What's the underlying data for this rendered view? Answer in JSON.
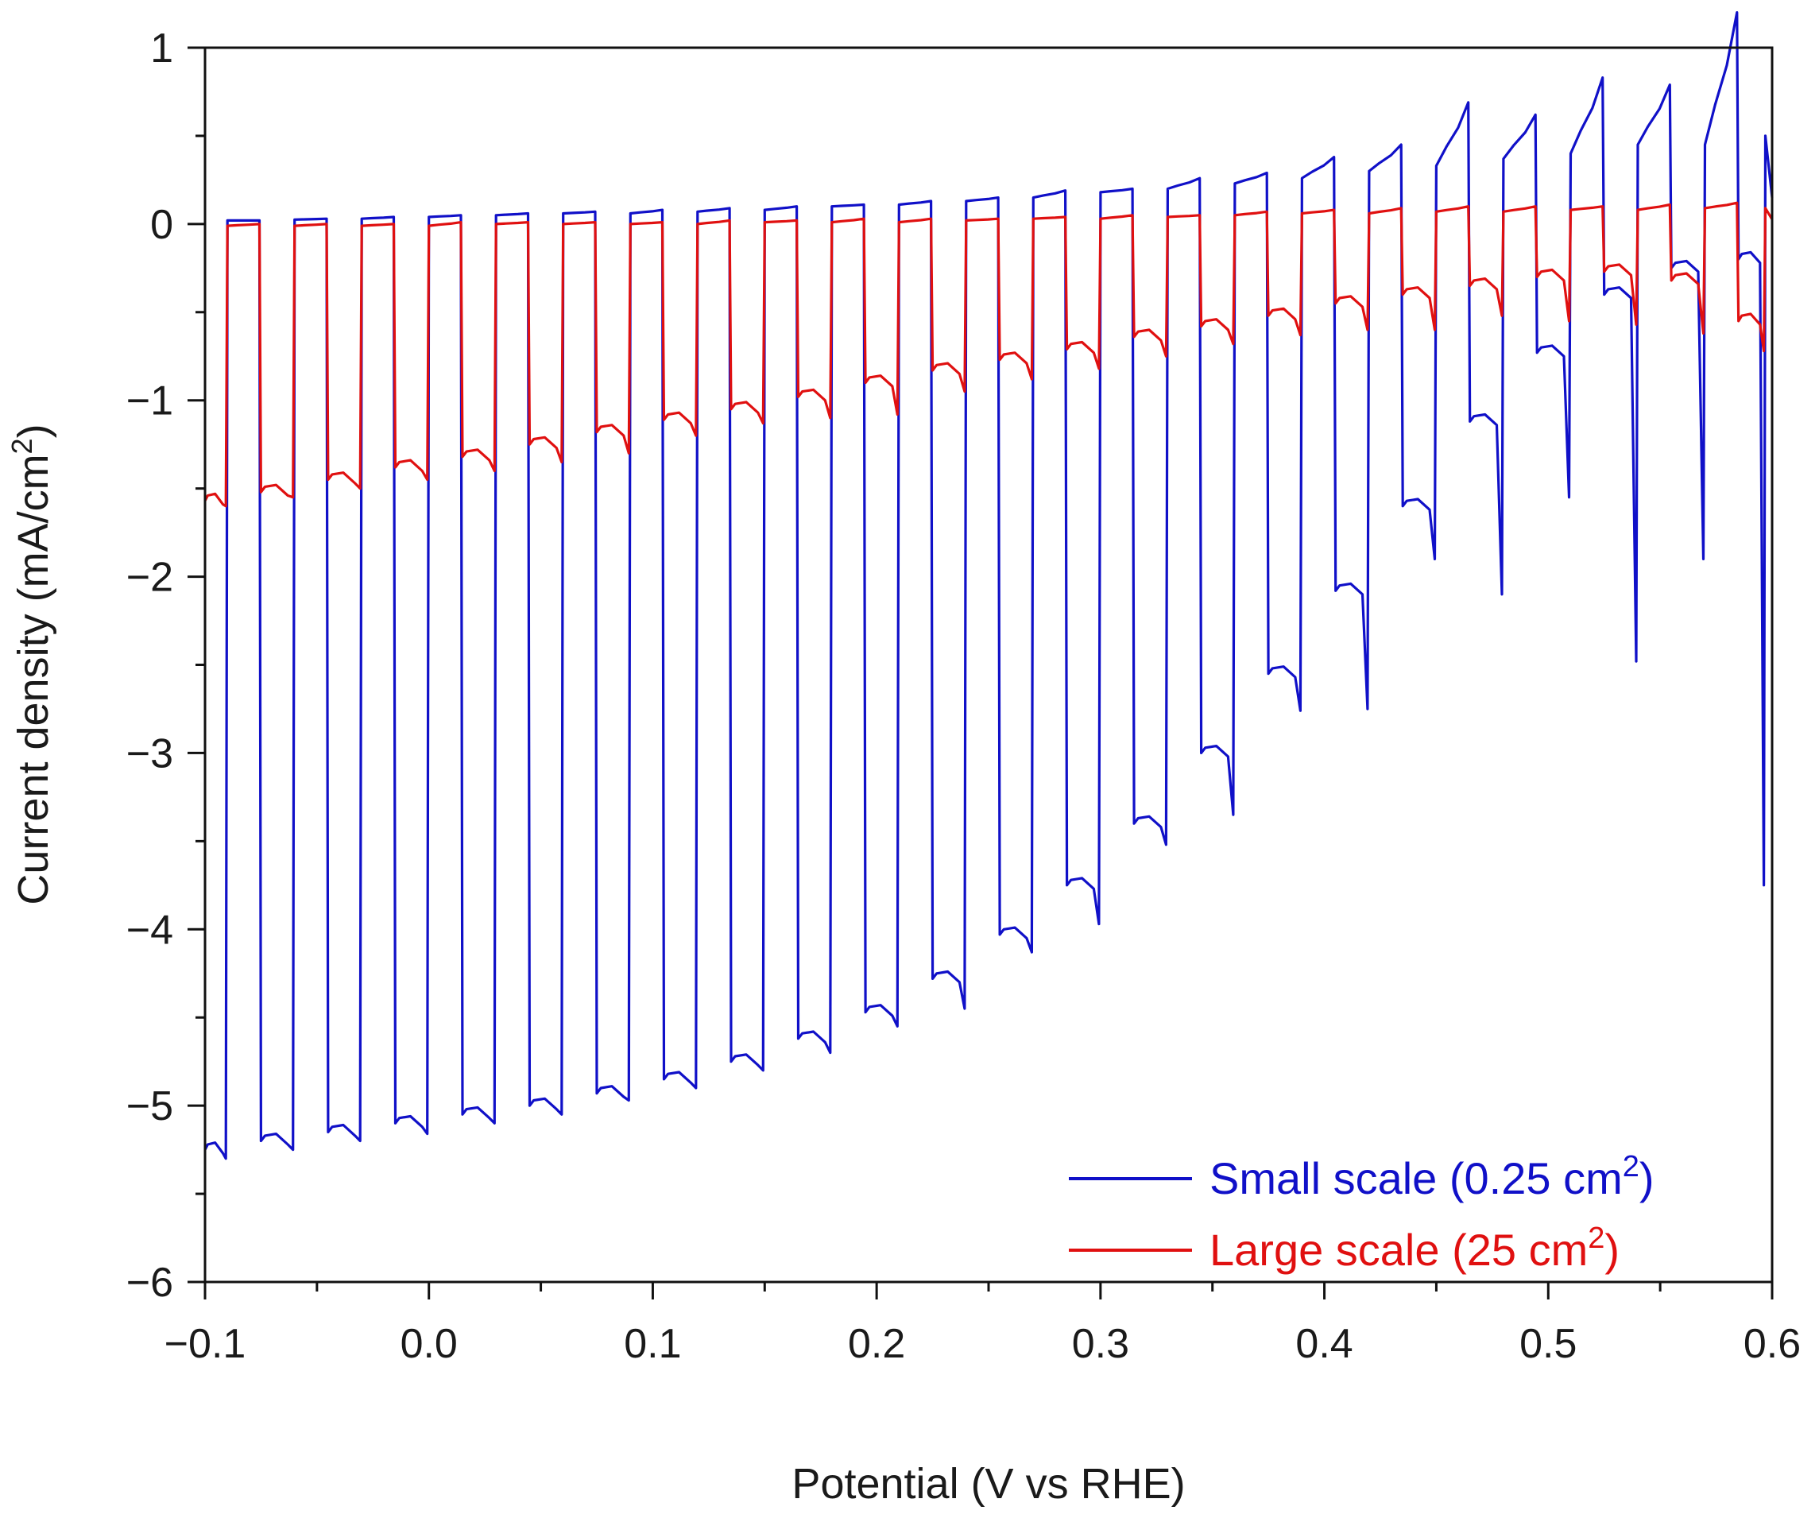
{
  "chart_data": {
    "type": "line",
    "title": "",
    "xlabel": "Potential (V vs RHE)",
    "ylabel": "Current density (mA/cm",
    "ylabel_sup": "2",
    "ylabel_close": ")",
    "xlim": [
      -0.1,
      0.6
    ],
    "ylim": [
      -6,
      1
    ],
    "x_ticks": [
      -0.1,
      0.0,
      0.1,
      0.2,
      0.3,
      0.4,
      0.5,
      0.6
    ],
    "x_tick_labels": [
      "−0.1",
      "0.0",
      "0.1",
      "0.2",
      "0.3",
      "0.4",
      "0.5",
      "0.6"
    ],
    "y_ticks": [
      1,
      0,
      -1,
      -2,
      -3,
      -4,
      -5,
      -6
    ],
    "y_tick_labels": [
      "1",
      "0",
      "−1",
      "−2",
      "−3",
      "−4",
      "−5",
      "−6"
    ],
    "chopped_light": true,
    "chop_period_V": 0.03,
    "light_on_starts_V": [
      -0.1,
      -0.075,
      -0.045,
      -0.015,
      0.015,
      0.045,
      0.075,
      0.105,
      0.135,
      0.165,
      0.195,
      0.225,
      0.255,
      0.285,
      0.315,
      0.345,
      0.375,
      0.405,
      0.435,
      0.465,
      0.495,
      0.525,
      0.555,
      0.585
    ],
    "light_on_ends_V": [
      -0.09,
      -0.06,
      -0.03,
      0.0,
      0.03,
      0.06,
      0.09,
      0.12,
      0.15,
      0.18,
      0.21,
      0.24,
      0.27,
      0.3,
      0.33,
      0.36,
      0.39,
      0.42,
      0.45,
      0.48,
      0.51,
      0.54,
      0.57,
      0.597
    ],
    "series": [
      {
        "name": "Small scale (0.25 cm",
        "name_sup": "2",
        "name_close": ")",
        "color": "#1010c8",
        "dark_current_start": [
          0.02,
          0.025,
          0.03,
          0.04,
          0.05,
          0.06,
          0.06,
          0.07,
          0.08,
          0.1,
          0.11,
          0.13,
          0.15,
          0.18,
          0.2,
          0.23,
          0.26,
          0.3,
          0.33,
          0.37,
          0.4,
          0.45,
          0.45,
          0.5
        ],
        "dark_current_peak": [
          0.02,
          0.03,
          0.04,
          0.05,
          0.06,
          0.07,
          0.08,
          0.09,
          0.1,
          0.11,
          0.13,
          0.15,
          0.19,
          0.2,
          0.26,
          0.29,
          0.38,
          0.45,
          0.69,
          0.62,
          0.83,
          0.79,
          1.2,
          0.8
        ],
        "light_current_plateau": [
          -5.25,
          -5.2,
          -5.15,
          -5.1,
          -5.05,
          -5.0,
          -4.93,
          -4.85,
          -4.75,
          -4.62,
          -4.47,
          -4.28,
          -4.03,
          -3.75,
          -3.4,
          -3.0,
          -2.55,
          -2.08,
          -1.6,
          -1.12,
          -0.73,
          -0.4,
          -0.25,
          -0.2
        ],
        "light_current_spike": [
          -5.3,
          -5.25,
          -5.2,
          -5.16,
          -5.1,
          -5.05,
          -4.97,
          -4.9,
          -4.8,
          -4.7,
          -4.55,
          -4.45,
          -4.13,
          -3.97,
          -3.52,
          -3.35,
          -2.76,
          -2.75,
          -1.9,
          -2.1,
          -1.55,
          -2.48,
          -1.9,
          -3.75
        ]
      },
      {
        "name": "Large scale (25 cm",
        "name_sup": "2",
        "name_close": ")",
        "color": "#e01010",
        "dark_current_start": [
          -0.01,
          -0.01,
          -0.01,
          -0.01,
          0.0,
          0.0,
          0.0,
          0.0,
          0.01,
          0.01,
          0.01,
          0.02,
          0.03,
          0.03,
          0.04,
          0.05,
          0.06,
          0.06,
          0.07,
          0.07,
          0.08,
          0.08,
          0.09,
          0.09
        ],
        "dark_current_peak": [
          0.0,
          0.0,
          0.0,
          0.01,
          0.01,
          0.01,
          0.01,
          0.02,
          0.02,
          0.03,
          0.03,
          0.03,
          0.04,
          0.05,
          0.05,
          0.07,
          0.08,
          0.09,
          0.1,
          0.1,
          0.1,
          0.11,
          0.12,
          0.11
        ],
        "light_current_plateau": [
          -1.57,
          -1.52,
          -1.45,
          -1.38,
          -1.32,
          -1.25,
          -1.18,
          -1.11,
          -1.05,
          -0.98,
          -0.9,
          -0.83,
          -0.77,
          -0.71,
          -0.64,
          -0.58,
          -0.52,
          -0.45,
          -0.4,
          -0.35,
          -0.3,
          -0.27,
          -0.32,
          -0.55
        ],
        "light_current_spike": [
          -1.6,
          -1.55,
          -1.5,
          -1.45,
          -1.4,
          -1.35,
          -1.3,
          -1.2,
          -1.13,
          -1.1,
          -1.08,
          -0.95,
          -0.88,
          -0.82,
          -0.75,
          -0.68,
          -0.63,
          -0.6,
          -0.6,
          -0.52,
          -0.55,
          -0.57,
          -0.62,
          -0.72
        ]
      }
    ],
    "legend": {
      "placement": "bottom-right"
    }
  }
}
